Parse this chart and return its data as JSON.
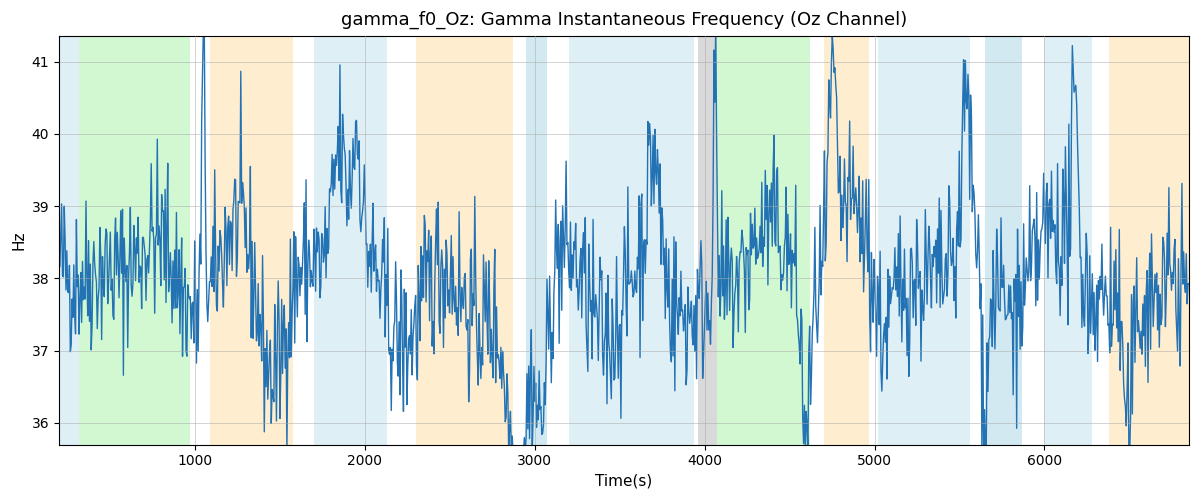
{
  "title": "gamma_f0_Oz: Gamma Instantaneous Frequency (Oz Channel)",
  "xlabel": "Time(s)",
  "ylabel": "Hz",
  "ylim": [
    35.7,
    41.35
  ],
  "xlim": [
    200,
    6850
  ],
  "yticks": [
    36,
    37,
    38,
    39,
    40,
    41
  ],
  "xticks": [
    1000,
    2000,
    3000,
    4000,
    5000,
    6000
  ],
  "background_bands": [
    {
      "xmin": 200,
      "xmax": 315,
      "color": "#ADD8E6",
      "alpha": 0.4
    },
    {
      "xmin": 315,
      "xmax": 970,
      "color": "#90EE90",
      "alpha": 0.4
    },
    {
      "xmin": 1090,
      "xmax": 1580,
      "color": "#FFDCA0",
      "alpha": 0.5
    },
    {
      "xmin": 1700,
      "xmax": 2130,
      "color": "#ADD8E6",
      "alpha": 0.4
    },
    {
      "xmin": 2300,
      "xmax": 2870,
      "color": "#FFDCA0",
      "alpha": 0.5
    },
    {
      "xmin": 2950,
      "xmax": 3070,
      "color": "#ADD8E6",
      "alpha": 0.55
    },
    {
      "xmin": 3200,
      "xmax": 3940,
      "color": "#ADD8E6",
      "alpha": 0.4
    },
    {
      "xmin": 3960,
      "xmax": 4070,
      "color": "#A0A0A0",
      "alpha": 0.4
    },
    {
      "xmin": 4070,
      "xmax": 4620,
      "color": "#90EE90",
      "alpha": 0.4
    },
    {
      "xmin": 4700,
      "xmax": 4970,
      "color": "#FFDCA0",
      "alpha": 0.5
    },
    {
      "xmin": 5020,
      "xmax": 5560,
      "color": "#ADD8E6",
      "alpha": 0.4
    },
    {
      "xmin": 5650,
      "xmax": 5870,
      "color": "#ADD8E6",
      "alpha": 0.55
    },
    {
      "xmin": 6000,
      "xmax": 6280,
      "color": "#ADD8E6",
      "alpha": 0.4
    },
    {
      "xmin": 6380,
      "xmax": 6850,
      "color": "#FFDCA0",
      "alpha": 0.5
    }
  ],
  "line_color": "#2272B4",
  "line_width": 1.0,
  "grid_color": "#aaaaaa",
  "grid_alpha": 0.6,
  "grid_linewidth": 0.6,
  "seed": 42,
  "n_points": 1300,
  "t_start": 200,
  "t_end": 6850
}
